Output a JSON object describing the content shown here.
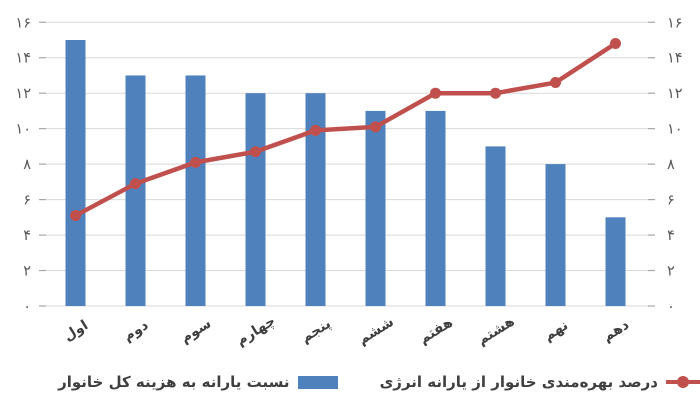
{
  "chart_data": {
    "type": "bar",
    "combo": "bar+line",
    "title": "",
    "xlabel": "",
    "ylabel": "",
    "categories": [
      "اول",
      "دوم",
      "سوم",
      "چهارم",
      "پنجم",
      "ششم",
      "هفتم",
      "هشتم",
      "نهم",
      "دهم"
    ],
    "series": [
      {
        "name": "نسبت یارانه به هزینه کل خانوار",
        "type": "bar",
        "color": "#4f81bd",
        "values": [
          15,
          13,
          13,
          12,
          12,
          11,
          11,
          9,
          8,
          5
        ]
      },
      {
        "name": "درصد بهره‌مندی خانوار از یارانه انرژی",
        "type": "line",
        "color": "#c0504d",
        "values": [
          5.1,
          6.9,
          8.1,
          8.7,
          9.9,
          10.1,
          12,
          12,
          12.6,
          14.8
        ]
      }
    ],
    "ylim": [
      0,
      16
    ],
    "ytick_step": 2,
    "ytick_labels": [
      "۰",
      "۲",
      "۴",
      "۶",
      "۸",
      "۱۰",
      "۱۲",
      "۱۴",
      "۱۶"
    ],
    "grid": true,
    "axis_sides": "left-and-right",
    "legend_position": "bottom"
  },
  "colors": {
    "background": "#ffffff",
    "bar": "#4f81bd",
    "line": "#c0504d",
    "gridline": "#d9d9d9",
    "tick_mark": "#a6a6a6",
    "axis_text": "#595959",
    "label_text": "#3f3f3f"
  }
}
